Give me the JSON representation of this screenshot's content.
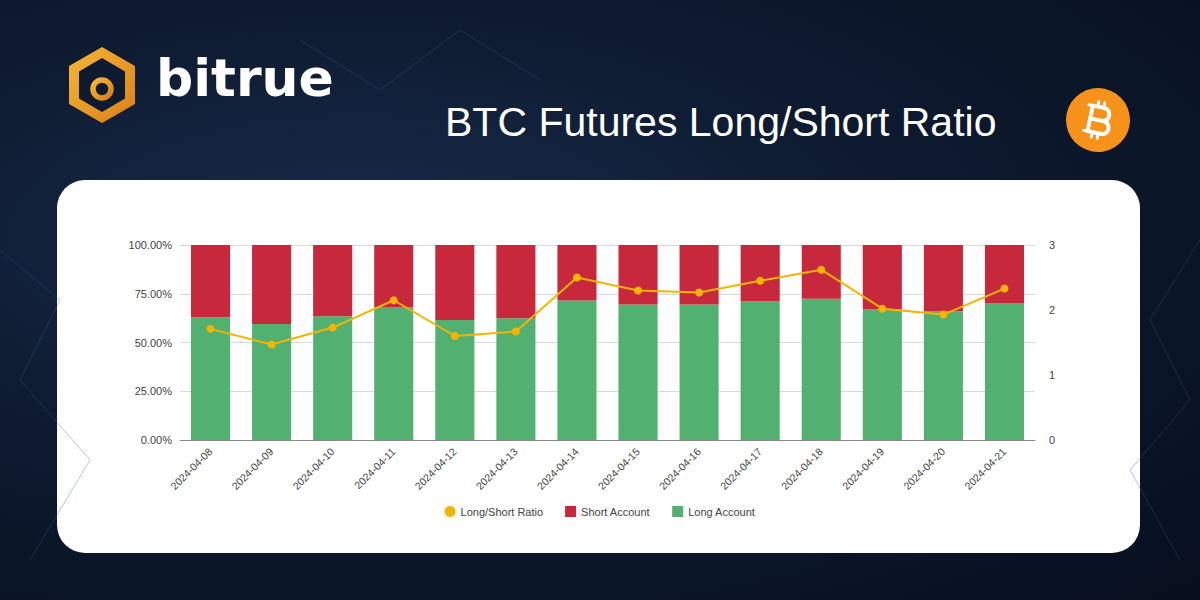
{
  "brand": "bitrue",
  "chart_data": {
    "type": "bar",
    "title": "BTC Futures Long/Short Ratio",
    "stacked": true,
    "grid": true,
    "legend": "bottom",
    "categories": [
      "2024-04-08",
      "2024-04-09",
      "2024-04-10",
      "2024-04-11",
      "2024-04-12",
      "2024-04-13",
      "2024-04-14",
      "2024-04-15",
      "2024-04-16",
      "2024-04-17",
      "2024-04-18",
      "2024-04-19",
      "2024-04-20",
      "2024-04-21"
    ],
    "ylim": [
      0,
      100
    ],
    "yticks": [
      {
        "value": 0,
        "label": "0.00%"
      },
      {
        "value": 25,
        "label": "25.00%"
      },
      {
        "value": 50,
        "label": "50.00%"
      },
      {
        "value": 75,
        "label": "75.00%"
      },
      {
        "value": 100,
        "label": "100.00%"
      }
    ],
    "y2lim": [
      0,
      3
    ],
    "y2ticks": [
      0,
      1,
      2,
      3
    ],
    "series": [
      {
        "name": "Long/Short Ratio",
        "type": "line",
        "axis": "y2",
        "color": "#f4b400",
        "marker": "circle",
        "line_style": "solid",
        "values": [
          1.71,
          1.47,
          1.73,
          2.15,
          1.6,
          1.67,
          2.5,
          2.3,
          2.27,
          2.45,
          2.62,
          2.02,
          1.93,
          2.33
        ]
      },
      {
        "name": "Short Account",
        "type": "bar",
        "color": "#c8283c",
        "values": [
          37,
          40.5,
          36.5,
          32,
          38.5,
          37.5,
          28.5,
          30.5,
          30.5,
          29,
          27.5,
          33,
          34,
          30
        ]
      },
      {
        "name": "Long Account",
        "type": "bar",
        "color": "#52b070",
        "values": [
          63,
          59.5,
          63.5,
          68,
          61.5,
          62.5,
          71.5,
          69.5,
          69.5,
          71,
          72.5,
          67,
          66,
          70
        ]
      }
    ]
  }
}
